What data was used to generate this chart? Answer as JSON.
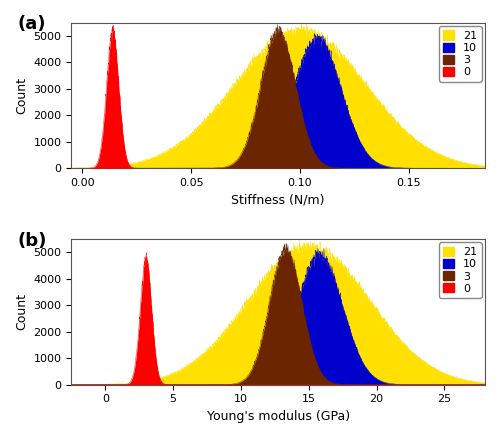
{
  "panel_a": {
    "title": "(a)",
    "xlabel": "Stiffness (N/m)",
    "ylabel": "Count",
    "series": [
      {
        "label": "21",
        "color": "#FFE000",
        "mean": 0.1,
        "std": 0.03,
        "peak": 5200,
        "zorder": 1
      },
      {
        "label": "10",
        "color": "#0000CC",
        "mean": 0.108,
        "std": 0.011,
        "peak": 4900,
        "zorder": 2
      },
      {
        "label": "3",
        "color": "#6B2500",
        "mean": 0.09,
        "std": 0.008,
        "peak": 5200,
        "zorder": 3
      },
      {
        "label": "0",
        "color": "#FF0000",
        "mean": 0.014,
        "std": 0.0028,
        "peak": 5200,
        "zorder": 4
      }
    ],
    "xlim": [
      -0.005,
      0.185
    ],
    "ylim": [
      0,
      5500
    ],
    "xticks": [
      0.0,
      0.05,
      0.1,
      0.15
    ],
    "yticks": [
      0,
      1000,
      2000,
      3000,
      4000,
      5000
    ]
  },
  "panel_b": {
    "title": "(b)",
    "xlabel": "Young's modulus (GPa)",
    "ylabel": "Count",
    "series": [
      {
        "label": "21",
        "color": "#FFE000",
        "mean": 15.0,
        "std": 4.5,
        "peak": 5200,
        "zorder": 1
      },
      {
        "label": "10",
        "color": "#0000CC",
        "mean": 15.8,
        "std": 1.7,
        "peak": 4900,
        "zorder": 2
      },
      {
        "label": "3",
        "color": "#6B2500",
        "mean": 13.3,
        "std": 1.2,
        "peak": 5100,
        "zorder": 3
      },
      {
        "label": "0",
        "color": "#FF0000",
        "mean": 3.0,
        "std": 0.42,
        "peak": 4800,
        "zorder": 4
      }
    ],
    "xlim": [
      -2.5,
      28
    ],
    "ylim": [
      0,
      5500
    ],
    "xticks": [
      0,
      5,
      10,
      15,
      20,
      25
    ],
    "yticks": [
      0,
      1000,
      2000,
      3000,
      4000,
      5000
    ]
  },
  "legend_order": [
    "21",
    "10",
    "3",
    "0"
  ],
  "legend_colors": {
    "21": "#FFE000",
    "10": "#0000CC",
    "3": "#6B2500",
    "0": "#FF0000"
  },
  "background_color": "#FFFFFF",
  "noise_seed": 42,
  "noise_scale": 120
}
